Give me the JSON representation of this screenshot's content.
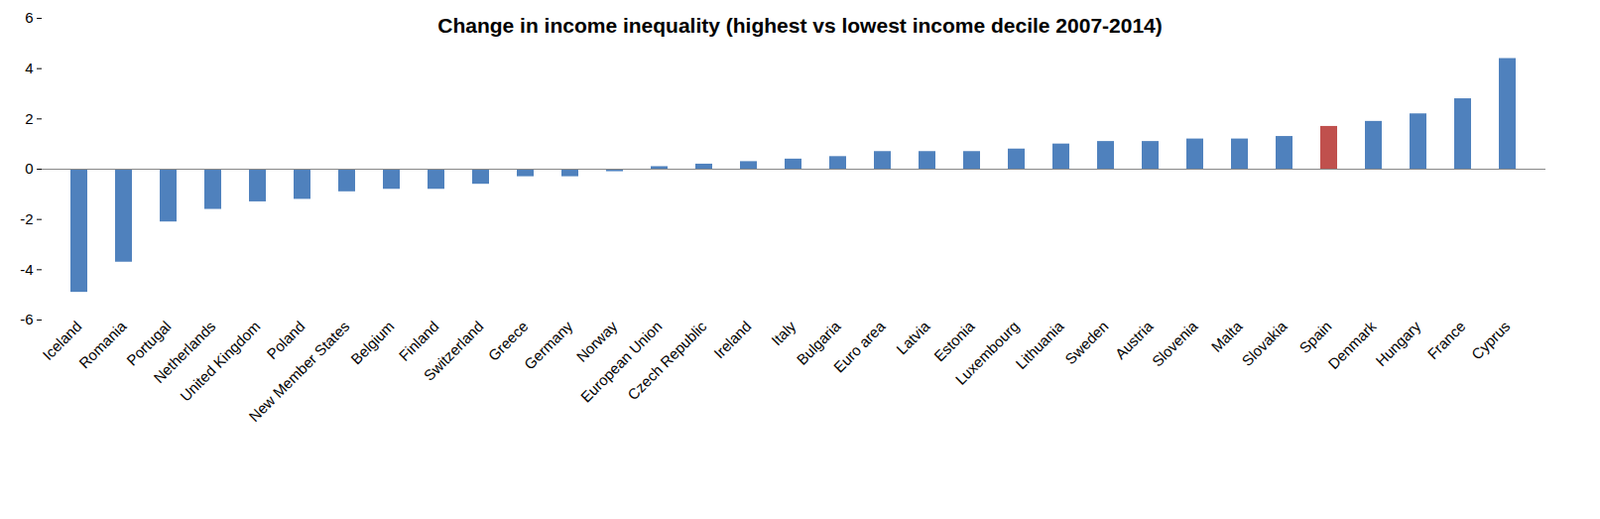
{
  "chart_data": {
    "type": "bar",
    "title": "Change in income inequality (highest vs lowest income decile 2007-2014)",
    "categories": [
      "Iceland",
      "Romania",
      "Portugal",
      "Netherlands",
      "United Kingdom",
      "Poland",
      "New Member States",
      "Belgium",
      "Finland",
      "Switzerland",
      "Greece",
      "Germany",
      "Norway",
      "European Union",
      "Czech Republic",
      "Ireland",
      "Italy",
      "Bulgaria",
      "Euro area",
      "Latvia",
      "Estonia",
      "Luxembourg",
      "Lithuania",
      "Sweden",
      "Austria",
      "Slovenia",
      "Malta",
      "Slovakia",
      "Spain",
      "Denmark",
      "Hungary",
      "France",
      "Cyprus"
    ],
    "values": [
      -4.9,
      -3.7,
      -2.1,
      -1.6,
      -1.3,
      -1.2,
      -0.9,
      -0.8,
      -0.8,
      -0.6,
      -0.3,
      -0.3,
      -0.1,
      0.1,
      0.2,
      0.3,
      0.4,
      0.5,
      0.7,
      0.7,
      0.7,
      0.8,
      1.0,
      1.1,
      1.1,
      1.2,
      1.2,
      1.3,
      1.7,
      1.9,
      2.2,
      2.8,
      4.4
    ],
    "colors": [
      "#4f81bd",
      "#4f81bd",
      "#4f81bd",
      "#4f81bd",
      "#4f81bd",
      "#4f81bd",
      "#4f81bd",
      "#4f81bd",
      "#4f81bd",
      "#4f81bd",
      "#4f81bd",
      "#4f81bd",
      "#4f81bd",
      "#4f81bd",
      "#4f81bd",
      "#4f81bd",
      "#4f81bd",
      "#4f81bd",
      "#4f81bd",
      "#4f81bd",
      "#4f81bd",
      "#4f81bd",
      "#4f81bd",
      "#4f81bd",
      "#4f81bd",
      "#4f81bd",
      "#4f81bd",
      "#4f81bd",
      "#c0504d",
      "#4f81bd",
      "#4f81bd",
      "#4f81bd",
      "#4f81bd"
    ],
    "ylim": [
      -6,
      6
    ],
    "yticks": [
      -6,
      -4,
      -2,
      0,
      2,
      4,
      6
    ],
    "grid": false
  }
}
